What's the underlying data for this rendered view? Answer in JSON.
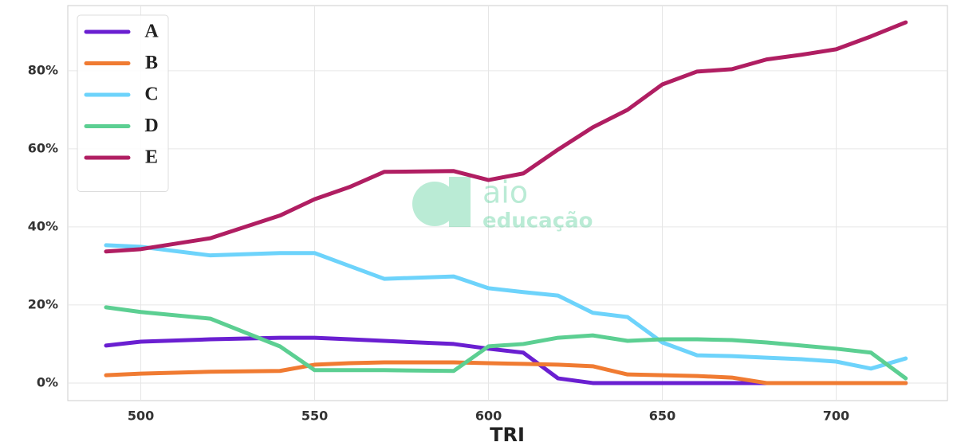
{
  "chart_data": {
    "type": "line",
    "x_label": "TRI",
    "watermark": [
      "aio",
      "educação"
    ],
    "x": [
      490,
      500,
      520,
      540,
      550,
      560,
      570,
      590,
      600,
      610,
      620,
      630,
      640,
      650,
      660,
      670,
      680,
      690,
      700,
      710,
      720
    ],
    "series": [
      {
        "name": "A",
        "color": "#6a1fd1",
        "values": [
          9.6,
          10.6,
          11.2,
          11.6,
          11.6,
          11.2,
          10.8,
          10.0,
          8.8,
          7.8,
          1.2,
          0,
          0,
          0,
          0,
          0,
          0,
          0,
          0,
          0,
          0
        ]
      },
      {
        "name": "B",
        "color": "#f07b32",
        "values": [
          2.0,
          2.4,
          2.9,
          3.1,
          4.7,
          5.1,
          5.3,
          5.3,
          5.1,
          4.9,
          4.7,
          4.3,
          2.2,
          2.0,
          1.8,
          1.4,
          0,
          0,
          0,
          0,
          0
        ]
      },
      {
        "name": "C",
        "color": "#6dd3fb",
        "values": [
          35.3,
          34.9,
          32.7,
          33.3,
          33.3,
          30.0,
          26.7,
          27.3,
          24.3,
          23.3,
          22.4,
          18.0,
          16.9,
          10.4,
          7.1,
          6.9,
          6.5,
          6.1,
          5.5,
          3.7,
          6.3
        ]
      },
      {
        "name": "D",
        "color": "#5ccf92",
        "values": [
          19.4,
          18.2,
          16.5,
          9.4,
          3.3,
          3.3,
          3.3,
          3.1,
          9.4,
          10.0,
          11.6,
          12.2,
          10.8,
          11.2,
          11.2,
          11.0,
          10.4,
          9.6,
          8.8,
          7.8,
          1.2
        ]
      },
      {
        "name": "E",
        "color": "#b01e62",
        "values": [
          33.7,
          34.3,
          37.1,
          42.9,
          47.1,
          50.2,
          54.1,
          54.3,
          52.0,
          53.7,
          59.8,
          65.5,
          70.0,
          76.5,
          79.8,
          80.4,
          82.9,
          84.1,
          85.5,
          88.8,
          92.4
        ]
      }
    ],
    "xlim": [
      479,
      732
    ],
    "ylim": [
      -4.5,
      96.7
    ],
    "xticks": [
      500,
      550,
      600,
      650,
      700
    ],
    "yticks": [
      {
        "value": 0,
        "label": "0%"
      },
      {
        "value": 20,
        "label": "20%"
      },
      {
        "value": 40,
        "label": "40%"
      },
      {
        "value": 60,
        "label": "60%"
      },
      {
        "value": 80,
        "label": "80%"
      }
    ],
    "grid": true,
    "legend": "upper-left"
  }
}
